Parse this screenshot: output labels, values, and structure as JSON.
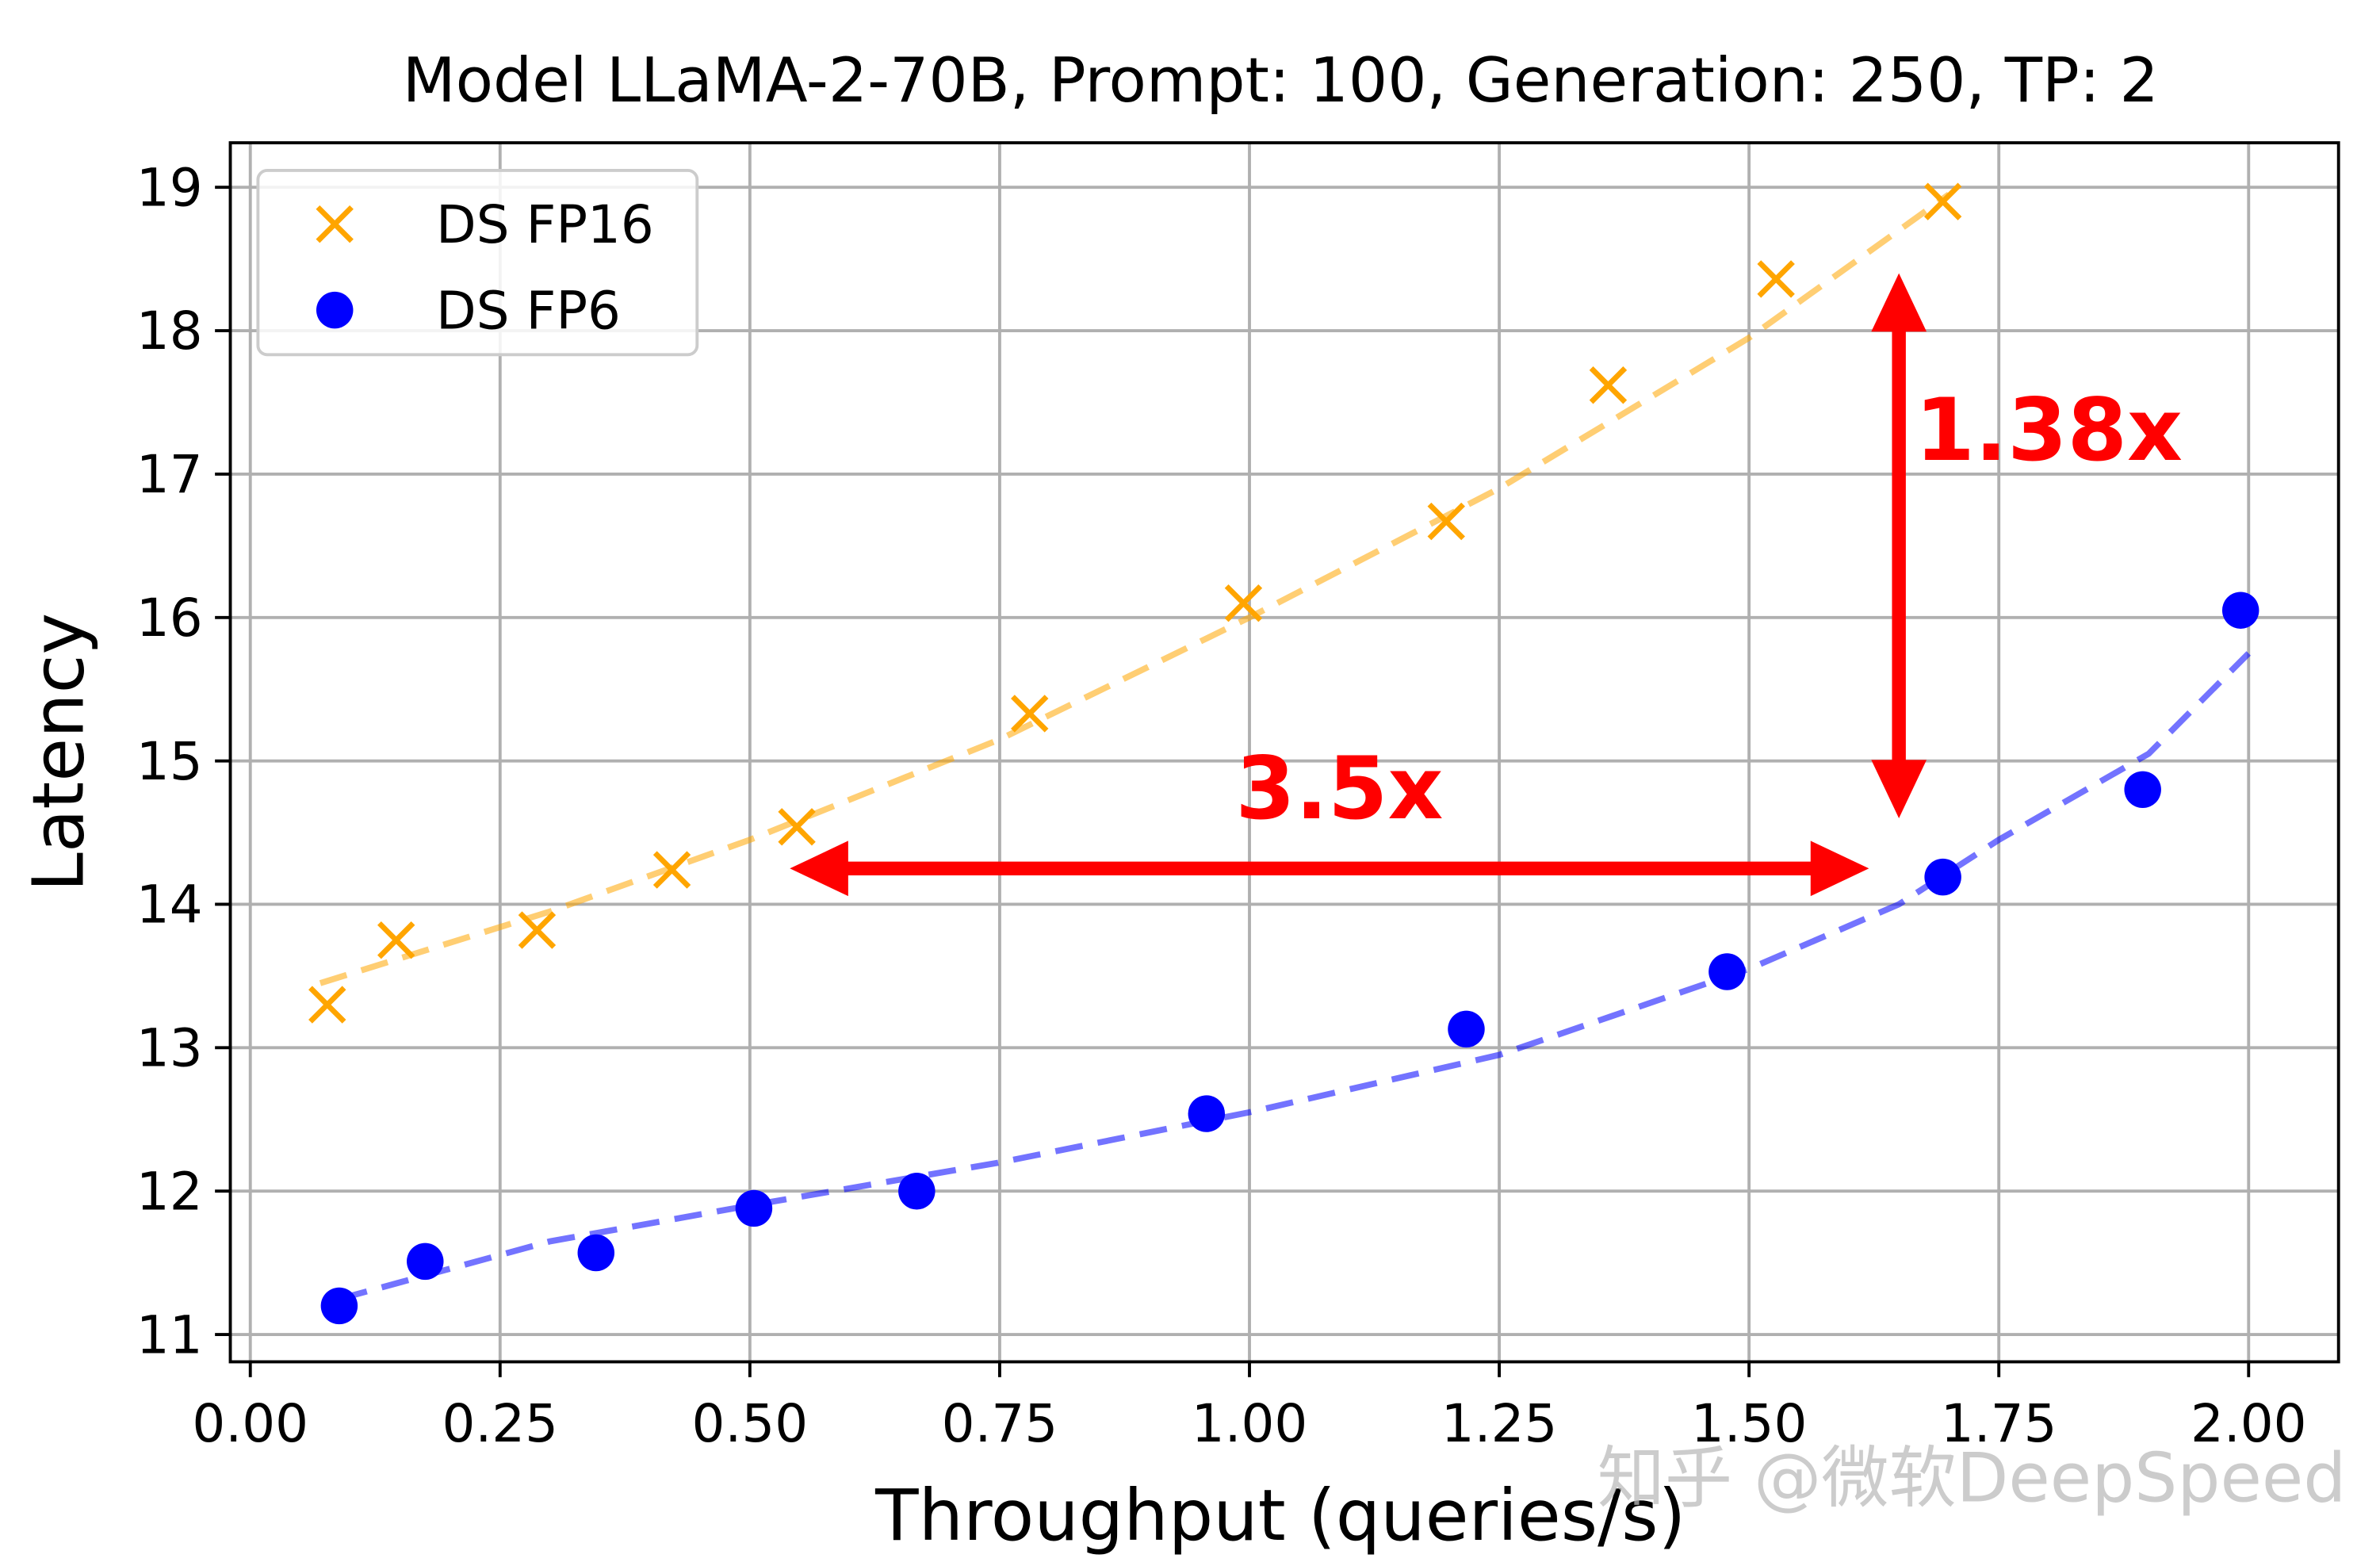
{
  "chart_data": {
    "type": "scatter",
    "title": "Model LLaMA-2-70B, Prompt: 100, Generation: 250, TP: 2",
    "xlabel": "Throughput (queries/s)",
    "ylabel": "Latency",
    "xlim": [
      -0.02,
      2.09
    ],
    "ylim": [
      10.81,
      19.31
    ],
    "xticks": [
      "0.00",
      "0.25",
      "0.50",
      "0.75",
      "1.00",
      "1.25",
      "1.50",
      "1.75",
      "2.00"
    ],
    "yticks": [
      "11",
      "12",
      "13",
      "14",
      "15",
      "16",
      "17",
      "18",
      "19"
    ],
    "grid": true,
    "legend_placement": "upper-left",
    "series": [
      {
        "name": "DS FP16",
        "marker": "x",
        "color": "#FFA500",
        "x": [
          0.077,
          0.146,
          0.287,
          0.422,
          0.547,
          0.78,
          0.994,
          1.197,
          1.359,
          1.527,
          1.694
        ],
        "y": [
          13.3,
          13.75,
          13.82,
          14.24,
          14.54,
          15.33,
          16.1,
          16.67,
          17.62,
          18.36,
          18.9
        ],
        "fit": {
          "x": [
            0.07,
            0.3,
            0.5,
            0.75,
            1.0,
            1.25,
            1.5,
            1.7
          ],
          "y": [
            13.45,
            13.95,
            14.45,
            15.15,
            16.0,
            16.9,
            17.95,
            18.95
          ]
        }
      },
      {
        "name": "DS FP6",
        "marker": "o",
        "color": "#0000FF",
        "x": [
          0.089,
          0.175,
          0.346,
          0.504,
          0.667,
          0.957,
          1.217,
          1.478,
          1.694,
          1.894,
          1.992
        ],
        "y": [
          11.2,
          11.51,
          11.57,
          11.88,
          12.0,
          12.54,
          13.13,
          13.53,
          14.19,
          14.8,
          16.05
        ],
        "fit": {
          "x": [
            0.09,
            0.3,
            0.5,
            0.75,
            1.0,
            1.25,
            1.5,
            1.65,
            1.75,
            1.9,
            2.0
          ],
          "y": [
            11.25,
            11.65,
            11.9,
            12.2,
            12.55,
            12.95,
            13.55,
            14.0,
            14.45,
            15.05,
            15.75
          ]
        }
      }
    ],
    "annotations": [
      {
        "text": "3.5x",
        "color": "#FF0000",
        "arrow": "horizontal",
        "x": [
          0.54,
          1.62
        ],
        "y": 14.25,
        "label_at": [
          1.09,
          14.6
        ]
      },
      {
        "text": "1.38x",
        "color": "#FF0000",
        "arrow": "vertical",
        "x": 1.65,
        "y": [
          14.6,
          18.4
        ],
        "label_at": [
          1.8,
          17.1
        ]
      }
    ]
  },
  "watermark": "知乎 @微软DeepSpeed"
}
